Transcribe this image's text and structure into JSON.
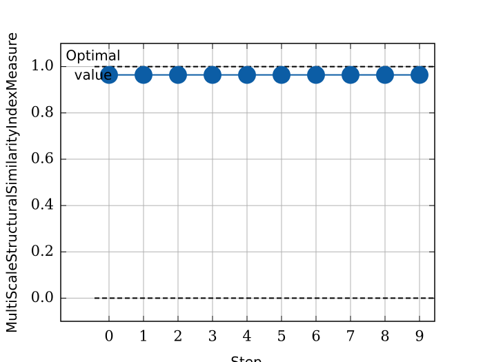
{
  "chart_data": {
    "type": "line",
    "x": [
      0,
      1,
      2,
      3,
      4,
      5,
      6,
      7,
      8,
      9
    ],
    "values": [
      0.964,
      0.964,
      0.964,
      0.964,
      0.964,
      0.964,
      0.964,
      0.964,
      0.964,
      0.964
    ],
    "color": "#0C5DA5",
    "xlabel": "Step",
    "ylabel": "MultiScaleStructuralSimilarityIndexMeasure",
    "xlim": [
      -1.4,
      9.44
    ],
    "xticks": [
      0,
      1,
      2,
      3,
      4,
      5,
      6,
      7,
      8,
      9
    ],
    "ylim": [
      -0.1,
      1.1
    ],
    "yticks": [
      {
        "value": 0,
        "label": "0.0"
      },
      {
        "value": 0.2,
        "label": "0.2"
      },
      {
        "value": 0.4,
        "label": "0.4"
      },
      {
        "value": 0.6,
        "label": "0.6"
      },
      {
        "value": 0.8,
        "label": "0.8"
      },
      {
        "value": 1,
        "label": "1.0"
      }
    ],
    "hlines": [
      0,
      1
    ],
    "annotation": [
      "Optimal",
      "value"
    ],
    "grid": true
  }
}
